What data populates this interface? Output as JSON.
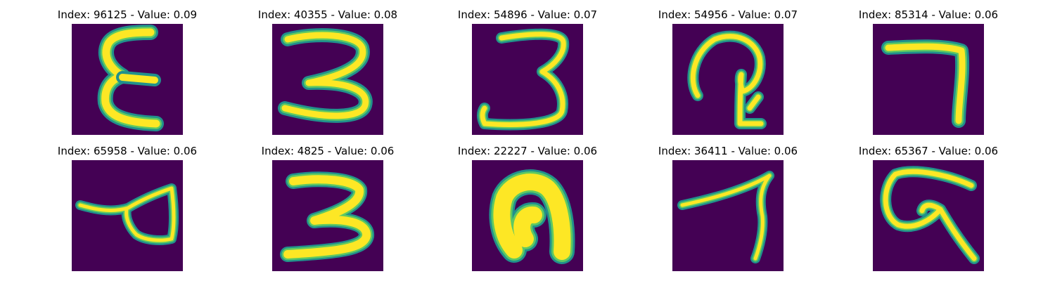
{
  "colors": {
    "background": "#440154",
    "stroke_core": "#fde725",
    "stroke_mid": "#5ec962",
    "stroke_edge": "#21918c"
  },
  "panels": [
    {
      "title": "Index: 96125 - Value: 0.09",
      "digit_shape": "epsilon"
    },
    {
      "title": "Index: 40355 - Value: 0.08",
      "digit_shape": "three"
    },
    {
      "title": "Index: 54896 - Value: 0.07",
      "digit_shape": "three-open"
    },
    {
      "title": "Index: 54956 - Value: 0.07",
      "digit_shape": "loop-hook"
    },
    {
      "title": "Index: 85314 - Value: 0.06",
      "digit_shape": "seven"
    },
    {
      "title": "Index: 65958 - Value: 0.06",
      "digit_shape": "loop-tail"
    },
    {
      "title": "Index: 4825 - Value: 0.06",
      "digit_shape": "three-bold"
    },
    {
      "title": "Index: 22227 - Value: 0.06",
      "digit_shape": "arch"
    },
    {
      "title": "Index: 36411 - Value: 0.06",
      "digit_shape": "seven-slant"
    },
    {
      "title": "Index: 65367 - Value: 0.06",
      "digit_shape": "curl"
    }
  ]
}
